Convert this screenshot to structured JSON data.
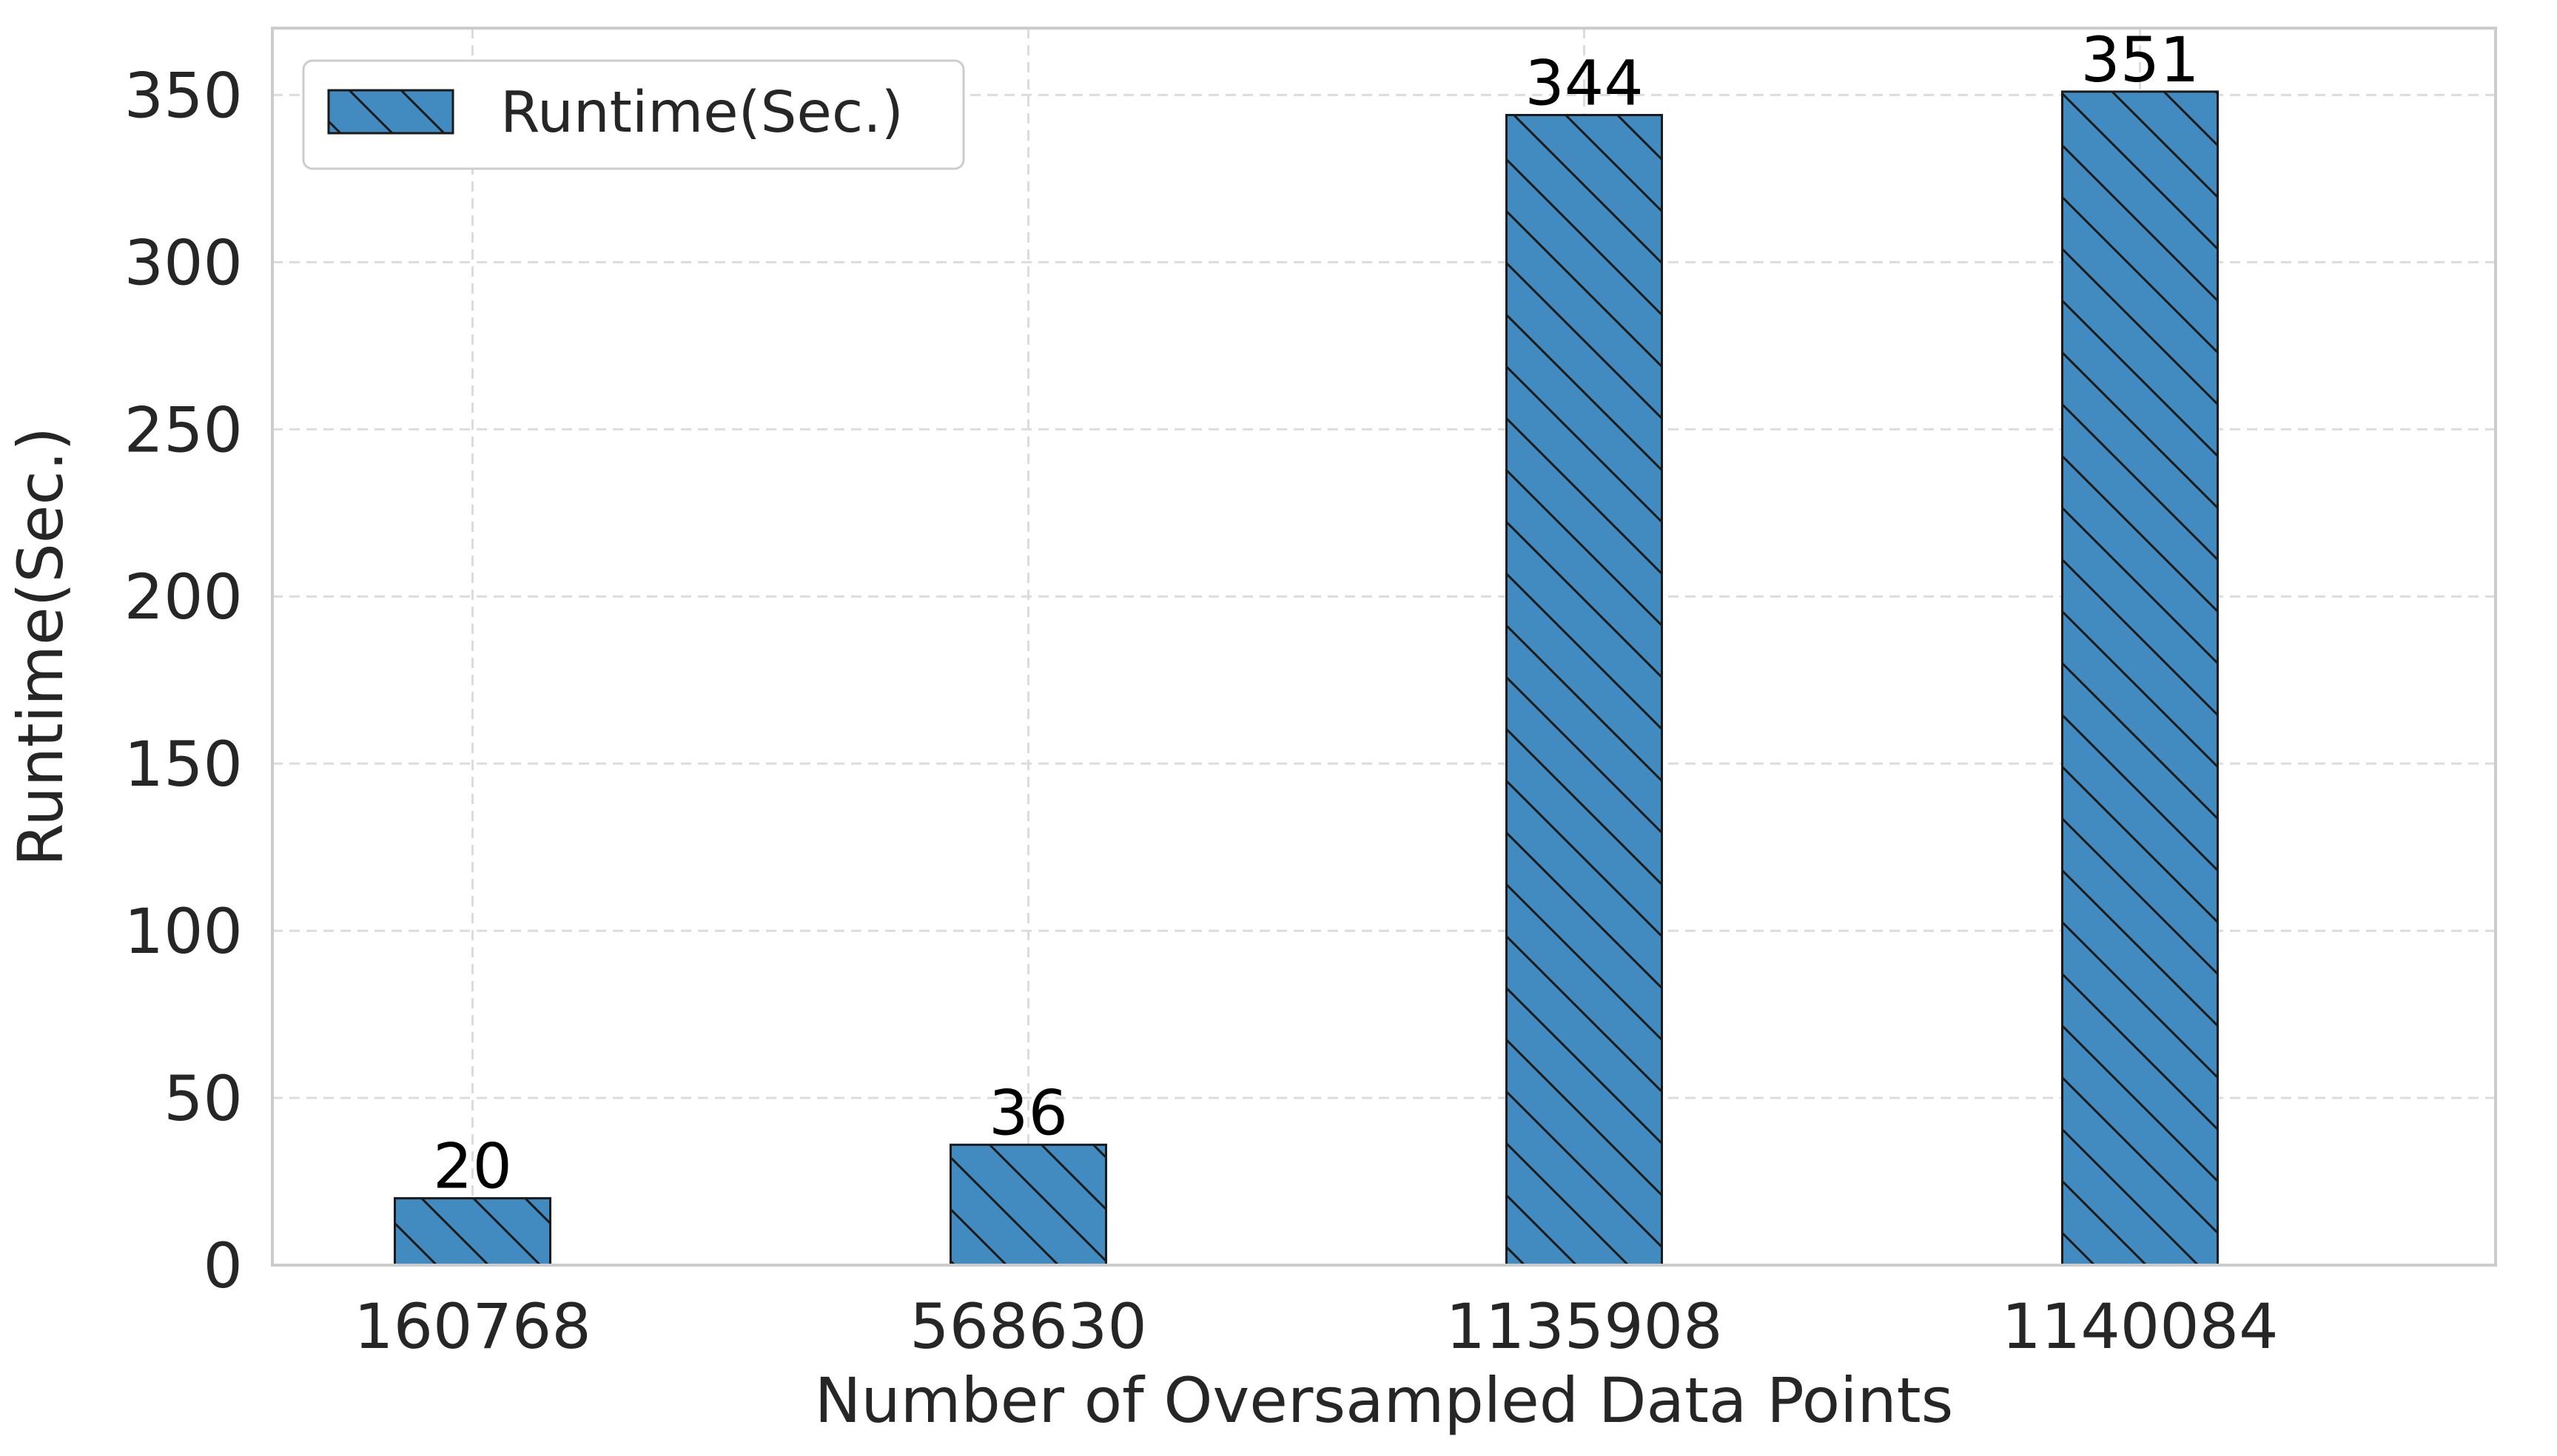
{
  "chart_data": {
    "type": "bar",
    "title": "",
    "xlabel": "Number of Oversampled Data Points",
    "ylabel": "Runtime(Sec.)",
    "categories": [
      "160768",
      "568630",
      "1135908",
      "1140084"
    ],
    "series": [
      {
        "name": "Runtime(Sec.)",
        "values": [
          20,
          36,
          344,
          351
        ],
        "data_labels": [
          "20",
          "36",
          "344",
          "351"
        ],
        "color": "#428bc0",
        "edge_color": "#1a1a1a",
        "hatch": "backslash"
      }
    ],
    "ylim": [
      0,
      370
    ],
    "yticks": [
      0,
      50,
      100,
      150,
      200,
      250,
      300,
      350
    ],
    "ytick_labels": [
      "0",
      "50",
      "100",
      "150",
      "200",
      "250",
      "300",
      "350"
    ],
    "grid": true,
    "grid_style": "dashed",
    "legend": {
      "position": "top-left",
      "entries": [
        "Runtime(Sec.)"
      ]
    },
    "colors": {
      "grid": "#dcdcdc",
      "frame": "#cccccc",
      "text": "#262626"
    }
  }
}
